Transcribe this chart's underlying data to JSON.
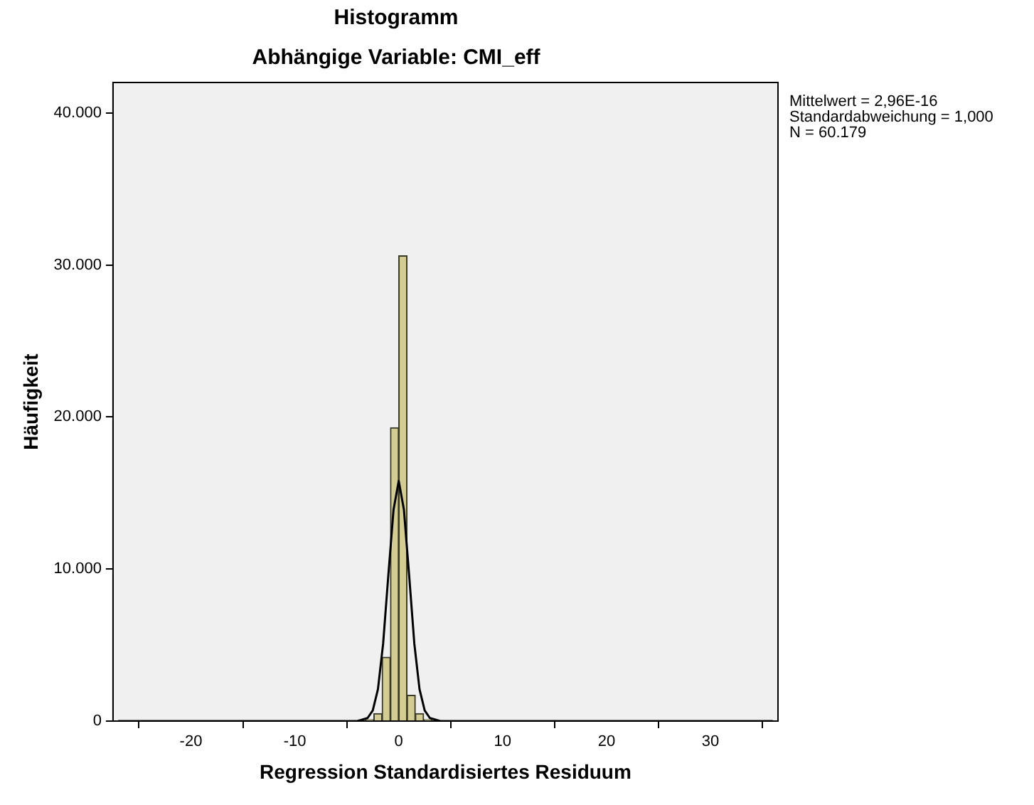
{
  "chart_data": {
    "type": "histogram",
    "title": "Histogramm",
    "subtitle": "Abhängige Variable: CMI_eff",
    "xlabel": "Regression Standardisiertes Residuum",
    "ylabel": "Häufigkeit",
    "annotations": [
      "Mittelwert = 2,96E-16\nStandardabweichung = 1,000\nN = 60.179"
    ],
    "bins": [
      -3.2,
      -2.4,
      -1.6,
      -0.8,
      0,
      0.8,
      1.6,
      2.4,
      3.2
    ],
    "values": [
      100,
      500,
      4200,
      19300,
      30600,
      1700,
      500,
      100
    ],
    "color": "#d3cd93",
    "series": [
      {
        "type": "line",
        "color": "#000000",
        "x": [
          -27,
          -4,
          -3,
          -2.5,
          -2,
          -1.5,
          -1,
          -0.5,
          0,
          0.5,
          1,
          1.5,
          2,
          2.5,
          3,
          4,
          36
        ],
        "values": [
          0,
          0,
          200,
          700,
          2100,
          5100,
          9600,
          13900,
          15800,
          13900,
          9600,
          5100,
          2100,
          700,
          200,
          0,
          0
        ]
      }
    ],
    "xlim": [
      -27.5,
      36.5
    ],
    "xticks": [
      -20,
      -10,
      0,
      10,
      20,
      30
    ],
    "ylim": [
      0,
      42000
    ],
    "yticks": [
      0,
      {
        "value": 10000,
        "label": "10.000"
      },
      {
        "value": 20000,
        "label": "20.000"
      },
      {
        "value": 30000,
        "label": "30.000"
      },
      {
        "value": 40000,
        "label": "40.000"
      }
    ],
    "grid": false,
    "legend": false
  }
}
